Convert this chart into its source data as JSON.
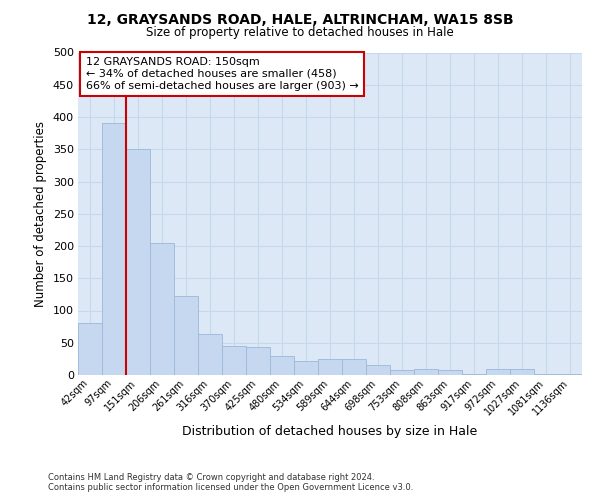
{
  "title_line1": "12, GRAYSANDS ROAD, HALE, ALTRINCHAM, WA15 8SB",
  "title_line2": "Size of property relative to detached houses in Hale",
  "xlabel": "Distribution of detached houses by size in Hale",
  "ylabel": "Number of detached properties",
  "categories": [
    "42sqm",
    "97sqm",
    "151sqm",
    "206sqm",
    "261sqm",
    "316sqm",
    "370sqm",
    "425sqm",
    "480sqm",
    "534sqm",
    "589sqm",
    "644sqm",
    "698sqm",
    "753sqm",
    "808sqm",
    "863sqm",
    "917sqm",
    "972sqm",
    "1027sqm",
    "1081sqm",
    "1136sqm"
  ],
  "values": [
    80,
    390,
    350,
    205,
    123,
    63,
    45,
    43,
    30,
    22,
    25,
    25,
    15,
    7,
    9,
    7,
    2,
    10,
    10,
    2,
    2
  ],
  "bar_color": "#c5d8ef",
  "bar_edge_color": "#9ab8d8",
  "grid_color": "#c8d8ec",
  "ax_background": "#dce8f5",
  "fig_background": "#ffffff",
  "marker_line_color": "#cc0000",
  "annotation_bg": "#ffffff",
  "annotation_border": "#cc0000",
  "marker_label_line1": "12 GRAYSANDS ROAD: 150sqm",
  "marker_label_line2": "← 34% of detached houses are smaller (458)",
  "marker_label_line3": "66% of semi-detached houses are larger (903) →",
  "ylim": [
    0,
    500
  ],
  "yticks": [
    0,
    50,
    100,
    150,
    200,
    250,
    300,
    350,
    400,
    450,
    500
  ],
  "footnote_line1": "Contains HM Land Registry data © Crown copyright and database right 2024.",
  "footnote_line2": "Contains public sector information licensed under the Open Government Licence v3.0."
}
